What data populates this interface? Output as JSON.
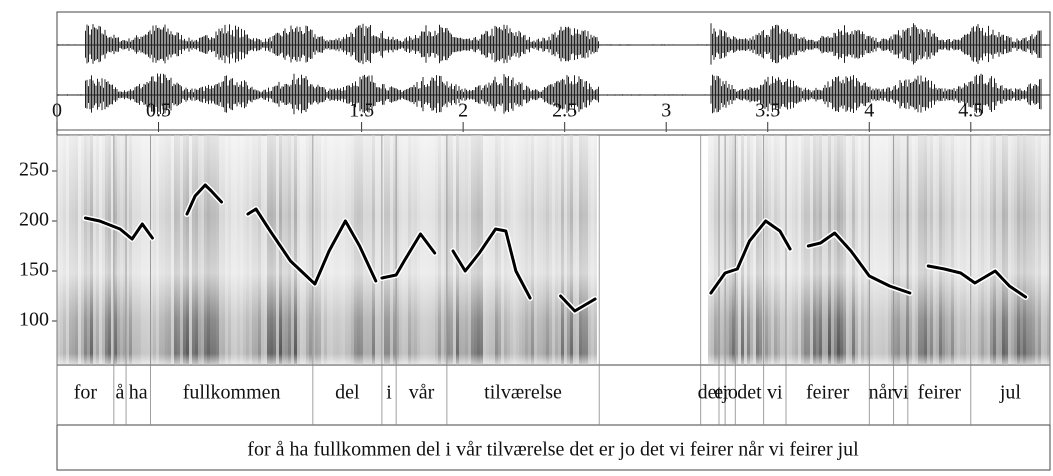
{
  "chart_data": {
    "type": "line",
    "color": "#000000",
    "xlim": [
      0,
      4.89
    ],
    "xticks": [
      0,
      0.5,
      1.5,
      2,
      2.5,
      3,
      3.5,
      4,
      4.5
    ],
    "ylim": [
      56,
      286
    ],
    "yticks": [
      100,
      150,
      200,
      250
    ],
    "x": [
      0.14,
      0.21,
      0.31,
      0.37,
      0.42,
      0.47,
      null,
      0.64,
      0.68,
      0.73,
      0.76,
      0.81,
      null,
      0.94,
      0.98,
      1.05,
      1.15,
      1.27,
      1.34,
      1.42,
      1.49,
      1.57,
      null,
      1.6,
      1.67,
      1.71,
      1.79,
      1.86,
      null,
      1.95,
      2.01,
      2.08,
      2.16,
      2.21,
      2.26,
      2.33,
      null,
      2.48,
      2.55,
      2.65,
      null,
      3.22,
      3.29,
      3.35,
      3.41,
      3.49,
      3.56,
      3.61,
      null,
      3.7,
      3.76,
      3.83,
      3.91,
      4.0,
      4.1,
      4.2,
      null,
      4.29,
      4.37,
      4.45,
      4.52,
      4.62,
      4.69,
      4.77
    ],
    "values": [
      203,
      200,
      192,
      182,
      197,
      183,
      null,
      207,
      225,
      236,
      230,
      219,
      null,
      207,
      212,
      190,
      160,
      137,
      170,
      200,
      175,
      140,
      null,
      143,
      146,
      160,
      187,
      168,
      null,
      170,
      150,
      168,
      192,
      190,
      150,
      123,
      null,
      125,
      110,
      122,
      null,
      128,
      148,
      152,
      180,
      200,
      190,
      172,
      null,
      175,
      178,
      188,
      170,
      145,
      135,
      128,
      null,
      155,
      152,
      148,
      138,
      150,
      135,
      124
    ],
    "word_boundaries": [
      0,
      0.28,
      0.34,
      0.46,
      1.26,
      1.6,
      1.67,
      1.92,
      2.67,
      3.17,
      3.26,
      3.29,
      3.34,
      3.48,
      3.59,
      4.0,
      4.12,
      4.19,
      4.5,
      4.89
    ],
    "words": [
      "for",
      "å",
      "ha",
      "fullkommen",
      "del",
      "i",
      "vår",
      "tilværelse",
      null,
      "det",
      "er",
      "jo",
      "det",
      "vi",
      "feirer",
      "når",
      "vi",
      "feirer",
      "jul"
    ],
    "sentence": "for å ha fullkommen del i vår tilværelse det er jo det vi feirer når vi feirer jul"
  }
}
